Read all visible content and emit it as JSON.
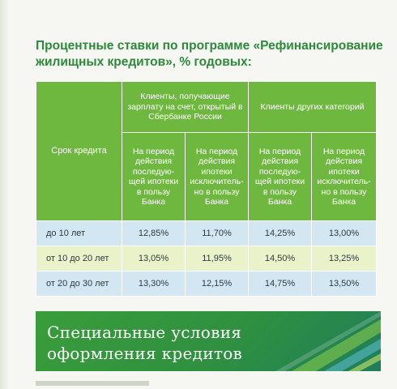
{
  "heading": {
    "line1": "Процентные ставки по программе «Рефинансирование",
    "line2": "жилищных кредитов», % годовых:"
  },
  "table": {
    "term_header": "Срок кредита",
    "group1": "Клиенты, получающие зарплату на счет, открытый в Сбербанке России",
    "group2": "Клиенты других категорий",
    "sub1": "На период действия последую-щей ипотеки в пользу Банка",
    "sub2": "На период действия ипотеки исключитель-но в пользу Банка",
    "sub3": "На период действия последую-щей ипотеки в пользу Банка",
    "sub4": "На период действия ипотеки исключитель-но в пользу Банка",
    "rows": [
      {
        "term": "до 10 лет",
        "v1": "12,85%",
        "v2": "11,70%",
        "v3": "14,25%",
        "v4": "13,00%"
      },
      {
        "term": "от 10 до 20 лет",
        "v1": "13,05%",
        "v2": "11,95%",
        "v3": "14,50%",
        "v4": "13,25%"
      },
      {
        "term": "от 20 до 30 лет",
        "v1": "13,30%",
        "v2": "12,15%",
        "v3": "14,75%",
        "v4": "13,50%"
      }
    ]
  },
  "banner": {
    "line1": "Специальные условия",
    "line2": "оформления кредитов"
  },
  "colors": {
    "heading_green": "#2c8a3a",
    "header_green": "#6fb83f",
    "row_blue": "#d2e7f2",
    "row_yellow": "#eaf2c9"
  }
}
